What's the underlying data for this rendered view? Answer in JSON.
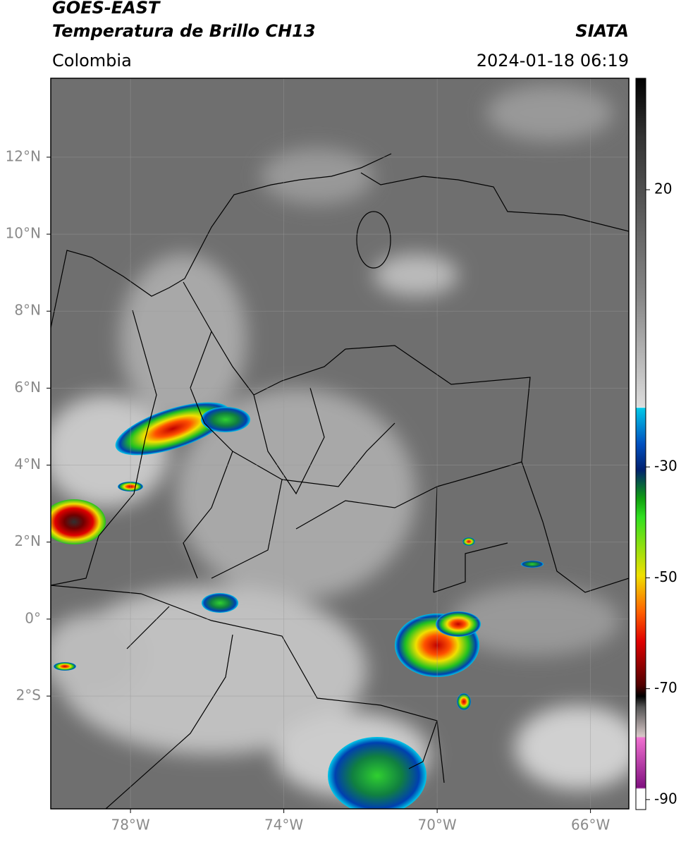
{
  "header": {
    "title": "GOES-EAST",
    "subtitle": "Temperatura de Brillo CH13",
    "source": "SIATA",
    "region": "Colombia",
    "datetime": "2024-01-18 06:19"
  },
  "map": {
    "xlim": [
      -80.08,
      -65.0
    ],
    "ylim": [
      -4.93,
      14.05
    ],
    "grid": true,
    "xticks": [
      {
        "value": -78,
        "label": "78°W"
      },
      {
        "value": -74,
        "label": "74°W"
      },
      {
        "value": -70,
        "label": "70°W"
      },
      {
        "value": -66,
        "label": "66°W"
      }
    ],
    "yticks": [
      {
        "value": 12,
        "label": "12°N"
      },
      {
        "value": 10,
        "label": "10°N"
      },
      {
        "value": 8,
        "label": "8°N"
      },
      {
        "value": 6,
        "label": "6°N"
      },
      {
        "value": 4,
        "label": "4°N"
      },
      {
        "value": 2,
        "label": "2°N"
      },
      {
        "value": 0,
        "label": "0°"
      },
      {
        "value": -2,
        "label": "2°S"
      }
    ]
  },
  "colorbar": {
    "ylim": [
      -91.8,
      40.1
    ],
    "yticks": [
      20,
      -30,
      -50,
      -70,
      -90
    ]
  }
}
